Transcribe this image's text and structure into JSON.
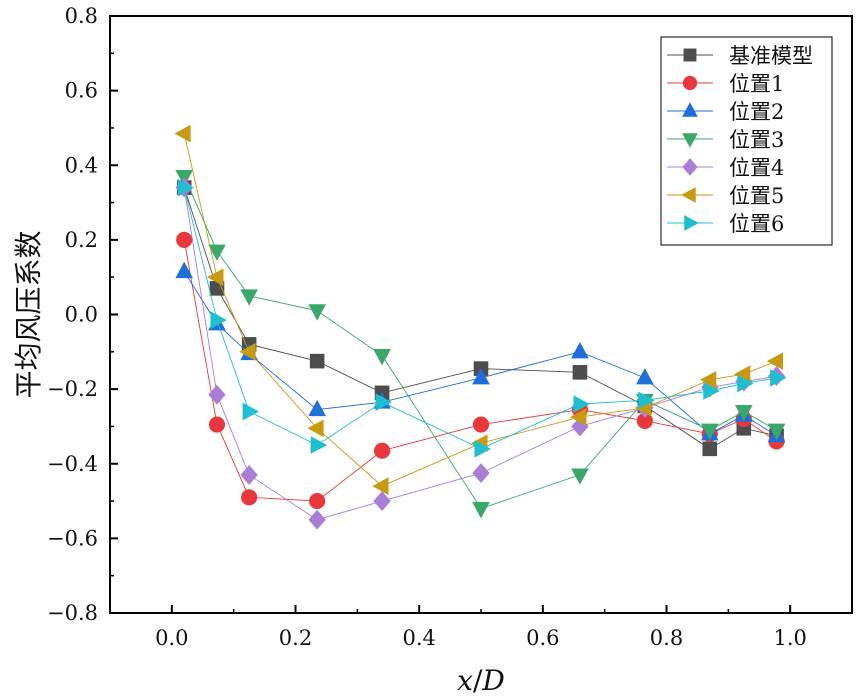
{
  "chart_data": {
    "type": "line",
    "title": "",
    "xlabel": "x/D",
    "xlabel_parts": {
      "var1": "x",
      "sep": "/",
      "var2": "D"
    },
    "ylabel": "平均风压系数",
    "xlim": [
      -0.1,
      1.1
    ],
    "ylim": [
      -0.8,
      0.8
    ],
    "xticks": [
      0.0,
      0.2,
      0.4,
      0.6,
      0.8,
      1.0
    ],
    "xtick_labels": [
      "0.0",
      "0.2",
      "0.4",
      "0.6",
      "0.8",
      "1.0"
    ],
    "yticks": [
      -0.8,
      -0.6,
      -0.4,
      -0.2,
      0.0,
      0.2,
      0.4,
      0.6,
      0.8
    ],
    "ytick_labels": [
      "−0.8",
      "−0.6",
      "−0.4",
      "−0.2",
      "0.0",
      "0.2",
      "0.4",
      "0.6",
      "0.8"
    ],
    "grid": false,
    "legend_position": "top-right",
    "x": [
      0.02,
      0.073,
      0.125,
      0.235,
      0.34,
      0.5,
      0.66,
      0.765,
      0.87,
      0.925,
      0.978
    ],
    "series": [
      {
        "name": "基准模型",
        "marker": "square",
        "color": "#4d4d4d",
        "values": [
          0.34,
          0.07,
          -0.08,
          -0.125,
          -0.21,
          -0.145,
          -0.155,
          -0.245,
          -0.36,
          -0.305,
          -0.325
        ]
      },
      {
        "name": "位置1",
        "marker": "circle",
        "color": "#e8383d",
        "values": [
          0.2,
          -0.295,
          -0.49,
          -0.5,
          -0.365,
          -0.295,
          -0.255,
          -0.285,
          -0.32,
          -0.28,
          -0.34
        ]
      },
      {
        "name": "位置2",
        "marker": "triangle-up",
        "color": "#1e6fd9",
        "values": [
          0.115,
          -0.025,
          -0.105,
          -0.255,
          -0.235,
          -0.17,
          -0.1,
          -0.17,
          -0.32,
          -0.27,
          -0.325
        ]
      },
      {
        "name": "位置3",
        "marker": "triangle-down",
        "color": "#3aa86a",
        "values": [
          0.37,
          0.17,
          0.05,
          0.01,
          -0.11,
          -0.52,
          -0.43,
          -0.23,
          -0.31,
          -0.26,
          -0.31
        ]
      },
      {
        "name": "位置4",
        "marker": "diamond",
        "color": "#a97fd6",
        "values": [
          0.34,
          -0.215,
          -0.43,
          -0.55,
          -0.5,
          -0.425,
          -0.3,
          -0.25,
          -0.195,
          -0.18,
          -0.165
        ]
      },
      {
        "name": "位置5",
        "marker": "triangle-left",
        "color": "#c89a12",
        "values": [
          0.485,
          0.1,
          -0.1,
          -0.305,
          -0.46,
          -0.345,
          -0.275,
          -0.25,
          -0.175,
          -0.16,
          -0.125
        ]
      },
      {
        "name": "位置6",
        "marker": "triangle-right",
        "color": "#1ebfcf",
        "values": [
          0.34,
          -0.015,
          -0.26,
          -0.35,
          -0.235,
          -0.36,
          -0.24,
          -0.23,
          -0.205,
          -0.185,
          -0.17
        ]
      }
    ]
  }
}
